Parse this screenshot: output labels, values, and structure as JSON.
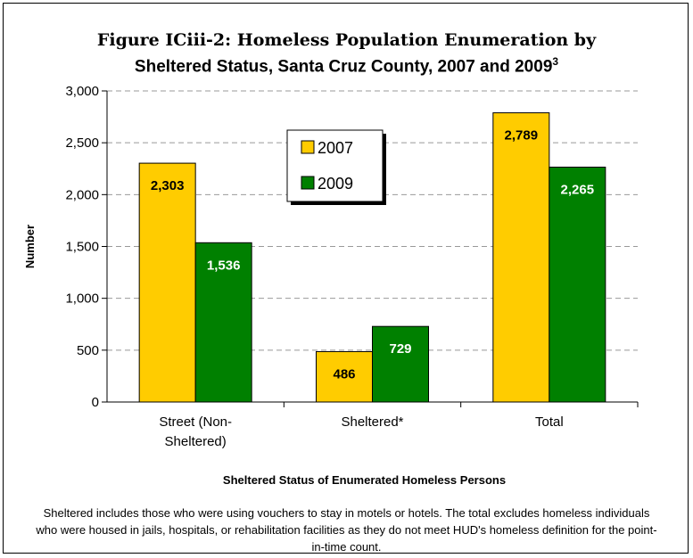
{
  "title_line1": "Figure ICiii-2: Homeless Population Enumeration by",
  "title_line2": "Sheltered Status, Santa Cruz County, 2007 and 2009",
  "title_superscript": "3",
  "footnote": "Sheltered includes those who were using vouchers to stay in motels or hotels. The total excludes homeless individuals who were housed in jails, hospitals, or rehabilitation facilities as they do not meet HUD's homeless definition for the point-in-time count.",
  "colors": {
    "2007": "#FFCC00",
    "2009": "#008000"
  },
  "chart_data": {
    "type": "bar",
    "title": "Figure ICiii-2: Homeless Population Enumeration by Sheltered Status, Santa Cruz County, 2007 and 2009",
    "xlabel": "Sheltered Status of Enumerated Homeless Persons",
    "ylabel": "Number",
    "categories": [
      "Street (Non-Sheltered)",
      "Sheltered*",
      "Total"
    ],
    "category_lines": [
      [
        "Street (Non-",
        "Sheltered)"
      ],
      [
        "Sheltered*"
      ],
      [
        "Total"
      ]
    ],
    "series": [
      {
        "name": "2007",
        "values": [
          2303,
          486,
          2789
        ],
        "labels": [
          "2,303",
          "486",
          "2,789"
        ]
      },
      {
        "name": "2009",
        "values": [
          1536,
          729,
          2265
        ],
        "labels": [
          "1,536",
          "729",
          "2,265"
        ]
      }
    ],
    "ylim": [
      0,
      3000
    ],
    "yticks": [
      0,
      500,
      1000,
      1500,
      2000,
      2500,
      3000
    ],
    "ytick_labels": [
      "0",
      "500",
      "1,000",
      "1,500",
      "2,000",
      "2,500",
      "3,000"
    ],
    "grid": true,
    "legend_position": "top-center"
  }
}
